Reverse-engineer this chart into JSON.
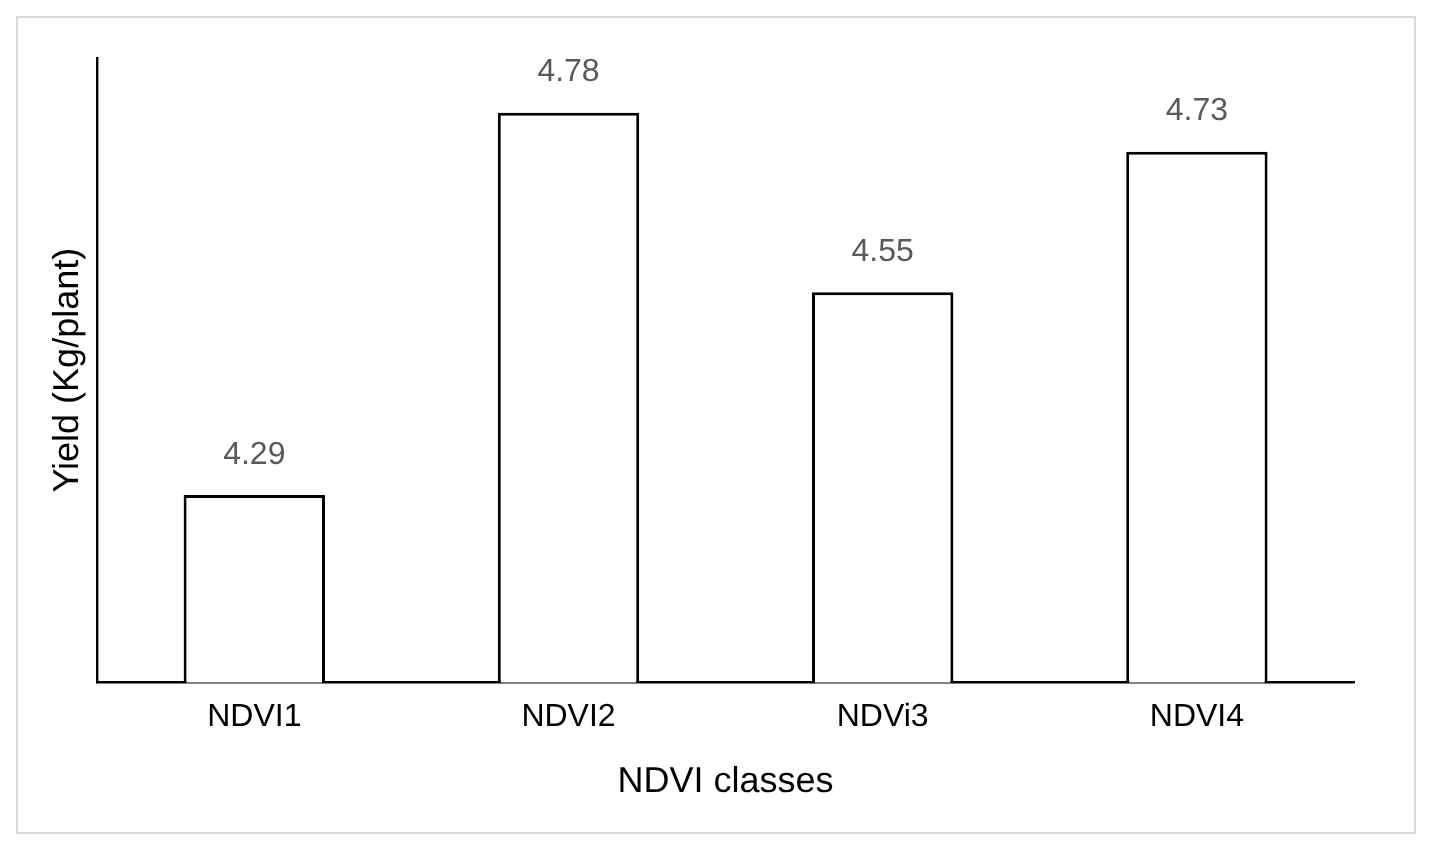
{
  "chart_data": {
    "type": "bar",
    "xlabel": "NDVI classes",
    "ylabel": "Yield (Kg/plant)",
    "categories": [
      "NDVI1",
      "NDVI2",
      "NDVi3",
      "NDVI4"
    ],
    "values": [
      4.29,
      4.78,
      4.55,
      4.73
    ],
    "color": "#ffffff",
    "ylim": [
      4.05,
      4.85
    ],
    "tick_labels": "x",
    "data_labels": true,
    "grid": false,
    "legend": false
  }
}
